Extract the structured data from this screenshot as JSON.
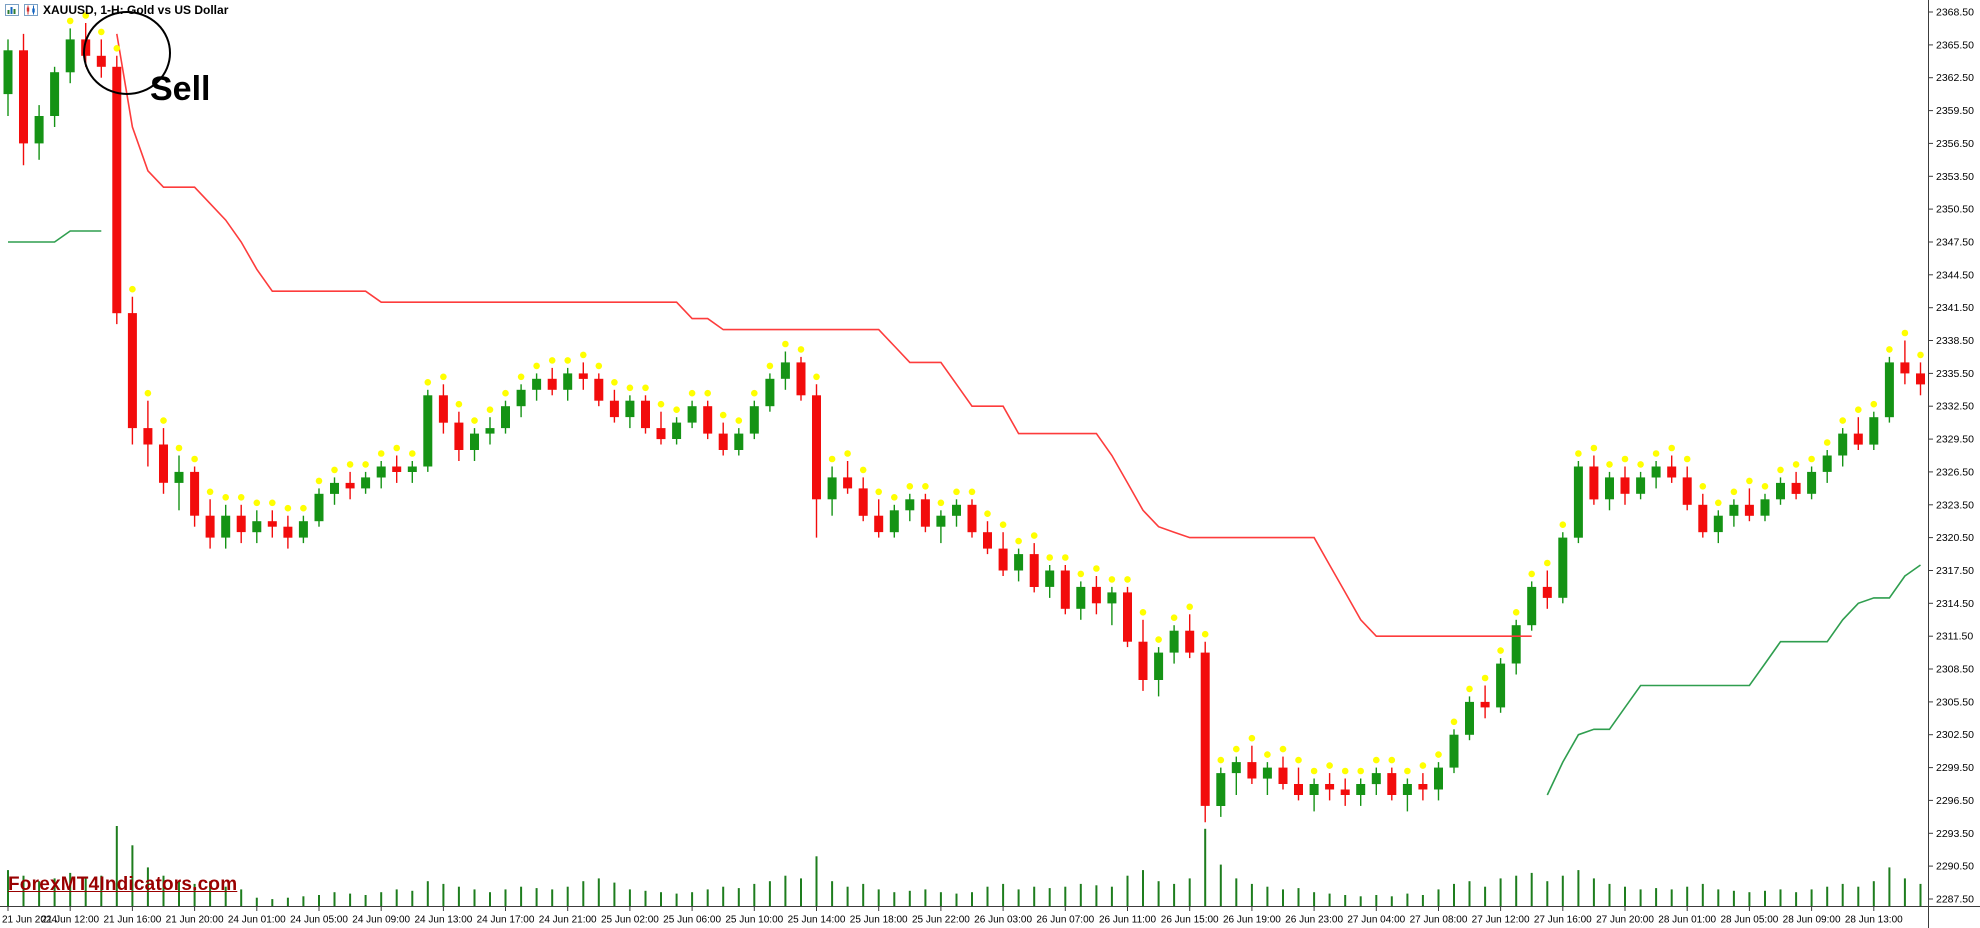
{
  "window": {
    "title": "XAUUSD, 1-H: Gold vs US Dollar"
  },
  "watermark": "ForexMT4Indicators.com",
  "annotation": {
    "label": "Sell"
  },
  "colors": {
    "background": "#ffffff",
    "bull_candle": "#159315",
    "bear_candle": "#f20c0c",
    "upper_stop_line": "#fd3c3c",
    "lower_stop_line": "#2f9e4f",
    "signal_dot": "#ffff00",
    "volume_bar": "#1e7d1e",
    "watermark_text": "#990000",
    "axis_text": "#000000"
  },
  "chart_data": {
    "type": "candlestick",
    "symbol": "XAUUSD",
    "timeframe": "1-H",
    "title": "XAUUSD, 1-H: Gold vs US Dollar",
    "grid": "off",
    "legend": "none",
    "y_axis": {
      "max_label": 2368.5,
      "min_label": 2287.5,
      "tick_step": 3.0,
      "tick_labels": [
        "2368.50",
        "2365.50",
        "2362.50",
        "2359.50",
        "2356.50",
        "2353.50",
        "2350.50",
        "2347.50",
        "2344.50",
        "2341.50",
        "2338.50",
        "2335.50",
        "2332.50",
        "2329.50",
        "2326.50",
        "2323.50",
        "2320.50",
        "2317.50",
        "2314.50",
        "2311.50",
        "2308.50",
        "2305.50",
        "2302.50",
        "2299.50",
        "2296.50",
        "2293.50",
        "2290.50",
        "2287.50"
      ]
    },
    "x_axis": {
      "candles_per_tick": 4,
      "tick_labels": [
        "21 Jun 2024",
        "21 Jun 12:00",
        "21 Jun 16:00",
        "21 Jun 20:00",
        "24 Jun 01:00",
        "24 Jun 05:00",
        "24 Jun 09:00",
        "24 Jun 13:00",
        "24 Jun 17:00",
        "24 Jun 21:00",
        "25 Jun 02:00",
        "25 Jun 06:00",
        "25 Jun 10:00",
        "25 Jun 14:00",
        "25 Jun 18:00",
        "25 Jun 22:00",
        "26 Jun 03:00",
        "26 Jun 07:00",
        "26 Jun 11:00",
        "26 Jun 15:00",
        "26 Jun 19:00",
        "26 Jun 23:00",
        "27 Jun 04:00",
        "27 Jun 08:00",
        "27 Jun 12:00",
        "27 Jun 16:00",
        "27 Jun 20:00",
        "28 Jun 01:00",
        "28 Jun 05:00",
        "28 Jun 09:00",
        "28 Jun 13:00"
      ]
    },
    "candles_ohlc": [
      [
        2361,
        2366,
        2359,
        2365
      ],
      [
        2365,
        2366.5,
        2354.5,
        2356.5
      ],
      [
        2356.5,
        2360,
        2355,
        2359
      ],
      [
        2359,
        2363.5,
        2358,
        2363
      ],
      [
        2363,
        2367,
        2362,
        2366
      ],
      [
        2366,
        2367.5,
        2363.5,
        2364.5
      ],
      [
        2364.5,
        2366,
        2362.5,
        2363.5
      ],
      [
        2363.5,
        2364.5,
        2340,
        2341
      ],
      [
        2341,
        2342.5,
        2329,
        2330.5
      ],
      [
        2330.5,
        2333,
        2327,
        2329
      ],
      [
        2329,
        2330.5,
        2324.5,
        2325.5
      ],
      [
        2325.5,
        2328,
        2323,
        2326.5
      ],
      [
        2326.5,
        2327,
        2321.5,
        2322.5
      ],
      [
        2322.5,
        2324,
        2319.5,
        2320.5
      ],
      [
        2320.5,
        2323.5,
        2319.5,
        2322.5
      ],
      [
        2322.5,
        2323.5,
        2320,
        2321
      ],
      [
        2321,
        2323,
        2320,
        2322
      ],
      [
        2322,
        2323,
        2320.5,
        2321.5
      ],
      [
        2321.5,
        2322.5,
        2319.5,
        2320.5
      ],
      [
        2320.5,
        2322.5,
        2320,
        2322
      ],
      [
        2322,
        2325,
        2321.5,
        2324.5
      ],
      [
        2324.5,
        2326,
        2323.5,
        2325.5
      ],
      [
        2325.5,
        2326.5,
        2324,
        2325
      ],
      [
        2325,
        2326.5,
        2324.5,
        2326
      ],
      [
        2326,
        2327.5,
        2325,
        2327
      ],
      [
        2327,
        2328,
        2325.5,
        2326.5
      ],
      [
        2326.5,
        2327.5,
        2325.5,
        2327
      ],
      [
        2327,
        2334,
        2326.5,
        2333.5
      ],
      [
        2333.5,
        2334.5,
        2330,
        2331
      ],
      [
        2331,
        2332,
        2327.5,
        2328.5
      ],
      [
        2328.5,
        2330.5,
        2327.5,
        2330
      ],
      [
        2330,
        2331.5,
        2329,
        2330.5
      ],
      [
        2330.5,
        2333,
        2330,
        2332.5
      ],
      [
        2332.5,
        2334.5,
        2331.5,
        2334
      ],
      [
        2334,
        2335.5,
        2333,
        2335
      ],
      [
        2335,
        2336,
        2333.5,
        2334
      ],
      [
        2334,
        2336,
        2333,
        2335.5
      ],
      [
        2335.5,
        2336.5,
        2334,
        2335
      ],
      [
        2335,
        2335.5,
        2332.5,
        2333
      ],
      [
        2333,
        2334,
        2331,
        2331.5
      ],
      [
        2331.5,
        2333.5,
        2330.5,
        2333
      ],
      [
        2333,
        2333.5,
        2330,
        2330.5
      ],
      [
        2330.5,
        2332,
        2329,
        2329.5
      ],
      [
        2329.5,
        2331.5,
        2329,
        2331
      ],
      [
        2331,
        2333,
        2330.5,
        2332.5
      ],
      [
        2332.5,
        2333,
        2329.5,
        2330
      ],
      [
        2330,
        2331,
        2328,
        2328.5
      ],
      [
        2328.5,
        2330.5,
        2328,
        2330
      ],
      [
        2330,
        2333,
        2329.5,
        2332.5
      ],
      [
        2332.5,
        2335.5,
        2332,
        2335
      ],
      [
        2335,
        2337.5,
        2334,
        2336.5
      ],
      [
        2336.5,
        2337,
        2333,
        2333.5
      ],
      [
        2333.5,
        2334.5,
        2320.5,
        2324
      ],
      [
        2324,
        2327,
        2322.5,
        2326
      ],
      [
        2326,
        2327.5,
        2324.5,
        2325
      ],
      [
        2325,
        2326,
        2322,
        2322.5
      ],
      [
        2322.5,
        2324,
        2320.5,
        2321
      ],
      [
        2321,
        2323.5,
        2320.5,
        2323
      ],
      [
        2323,
        2324.5,
        2322,
        2324
      ],
      [
        2324,
        2324.5,
        2321,
        2321.5
      ],
      [
        2321.5,
        2323,
        2320,
        2322.5
      ],
      [
        2322.5,
        2324,
        2321.5,
        2323.5
      ],
      [
        2323.5,
        2324,
        2320.5,
        2321
      ],
      [
        2321,
        2322,
        2319,
        2319.5
      ],
      [
        2319.5,
        2321,
        2317,
        2317.5
      ],
      [
        2317.5,
        2319.5,
        2316.5,
        2319
      ],
      [
        2319,
        2320,
        2315.5,
        2316
      ],
      [
        2316,
        2318,
        2315,
        2317.5
      ],
      [
        2317.5,
        2318,
        2313.5,
        2314
      ],
      [
        2314,
        2316.5,
        2313,
        2316
      ],
      [
        2316,
        2317,
        2313.5,
        2314.5
      ],
      [
        2314.5,
        2316,
        2312.5,
        2315.5
      ],
      [
        2315.5,
        2316,
        2310.5,
        2311
      ],
      [
        2311,
        2313,
        2306.5,
        2307.5
      ],
      [
        2307.5,
        2310.5,
        2306,
        2310
      ],
      [
        2310,
        2312.5,
        2309,
        2312
      ],
      [
        2312,
        2313.5,
        2309.5,
        2310
      ],
      [
        2310,
        2311,
        2294.5,
        2296
      ],
      [
        2296,
        2299.5,
        2295,
        2299
      ],
      [
        2299,
        2300.5,
        2297,
        2300
      ],
      [
        2300,
        2301.5,
        2298,
        2298.5
      ],
      [
        2298.5,
        2300,
        2297,
        2299.5
      ],
      [
        2299.5,
        2300.5,
        2297.5,
        2298
      ],
      [
        2298,
        2299.5,
        2296.5,
        2297
      ],
      [
        2297,
        2298.5,
        2295.5,
        2298
      ],
      [
        2298,
        2299,
        2296.5,
        2297.5
      ],
      [
        2297.5,
        2298.5,
        2296,
        2297
      ],
      [
        2297,
        2298.5,
        2296,
        2298
      ],
      [
        2298,
        2299.5,
        2297,
        2299
      ],
      [
        2299,
        2299.5,
        2296.5,
        2297
      ],
      [
        2297,
        2298.5,
        2295.5,
        2298
      ],
      [
        2298,
        2299,
        2296.5,
        2297.5
      ],
      [
        2297.5,
        2300,
        2296.5,
        2299.5
      ],
      [
        2299.5,
        2303,
        2299,
        2302.5
      ],
      [
        2302.5,
        2306,
        2302,
        2305.5
      ],
      [
        2305.5,
        2307,
        2304,
        2305
      ],
      [
        2305,
        2309.5,
        2304.5,
        2309
      ],
      [
        2309,
        2313,
        2308,
        2312.5
      ],
      [
        2312.5,
        2316.5,
        2312,
        2316
      ],
      [
        2316,
        2317.5,
        2314,
        2315
      ],
      [
        2315,
        2321,
        2314.5,
        2320.5
      ],
      [
        2320.5,
        2327.5,
        2320,
        2327
      ],
      [
        2327,
        2328,
        2323.5,
        2324
      ],
      [
        2324,
        2326.5,
        2323,
        2326
      ],
      [
        2326,
        2327,
        2323.5,
        2324.5
      ],
      [
        2324.5,
        2326.5,
        2324,
        2326
      ],
      [
        2326,
        2327.5,
        2325,
        2327
      ],
      [
        2327,
        2328,
        2325.5,
        2326
      ],
      [
        2326,
        2327,
        2323,
        2323.5
      ],
      [
        2323.5,
        2324.5,
        2320.5,
        2321
      ],
      [
        2321,
        2323,
        2320,
        2322.5
      ],
      [
        2322.5,
        2324,
        2321.5,
        2323.5
      ],
      [
        2323.5,
        2325,
        2322,
        2322.5
      ],
      [
        2322.5,
        2324.5,
        2322,
        2324
      ],
      [
        2324,
        2326,
        2323.5,
        2325.5
      ],
      [
        2325.5,
        2326.5,
        2324,
        2324.5
      ],
      [
        2324.5,
        2327,
        2324,
        2326.5
      ],
      [
        2326.5,
        2328.5,
        2325.5,
        2328
      ],
      [
        2328,
        2330.5,
        2327,
        2330
      ],
      [
        2330,
        2331.5,
        2328.5,
        2329
      ],
      [
        2329,
        2332,
        2328.5,
        2331.5
      ],
      [
        2331.5,
        2337,
        2331,
        2336.5
      ],
      [
        2336.5,
        2338.5,
        2334.5,
        2335.5
      ],
      [
        2335.5,
        2336.5,
        2333.5,
        2334.5
      ]
    ],
    "upper_stop_line_segments": [
      {
        "start_index": 7,
        "values": [
          2366.5,
          2358,
          2354,
          2352.5,
          2352.5,
          2352.5,
          2351,
          2349.5,
          2347.5,
          2345,
          2343,
          2343,
          2343,
          2343,
          2343,
          2343,
          2343,
          2342,
          2342,
          2342,
          2342,
          2342,
          2342,
          2342,
          2342,
          2342,
          2342,
          2342,
          2342,
          2342,
          2342,
          2342,
          2342,
          2342,
          2342,
          2342,
          2342,
          2340.5,
          2340.5,
          2339.5,
          2339.5,
          2339.5,
          2339.5,
          2339.5,
          2339.5,
          2339.5,
          2339.5,
          2339.5,
          2339.5,
          2339.5,
          2338,
          2336.5,
          2336.5,
          2336.5,
          2334.5,
          2332.5,
          2332.5,
          2332.5,
          2330,
          2330,
          2330,
          2330,
          2330,
          2330,
          2328,
          2325.5,
          2323,
          2321.5,
          2321,
          2320.5,
          2320.5,
          2320.5,
          2320.5,
          2320.5,
          2320.5,
          2320.5,
          2320.5,
          2320.5,
          2318,
          2315.5,
          2313,
          2311.5,
          2311.5,
          2311.5,
          2311.5,
          2311.5,
          2311.5,
          2311.5,
          2311.5,
          2311.5,
          2311.5,
          2311.5
        ]
      }
    ],
    "lower_stop_line_segments": [
      {
        "start_index": 0,
        "values": [
          2347.5,
          2347.5,
          2347.5,
          2347.5,
          2348.5,
          2348.5,
          2348.5
        ]
      },
      {
        "start_index": 99,
        "values": [
          2297,
          2300,
          2302.5,
          2303,
          2303,
          2305,
          2307,
          2307,
          2307,
          2307,
          2307,
          2307,
          2307,
          2307,
          2309,
          2311,
          2311,
          2311,
          2311,
          2313,
          2314.5,
          2315,
          2315,
          2317,
          2318
        ]
      }
    ],
    "signal_dots": {
      "shape": "dot-above-high",
      "from_index": 4
    },
    "volume": [
      1300,
      1100,
      900,
      1000,
      1200,
      1000,
      1100,
      2900,
      2200,
      1400,
      1100,
      900,
      800,
      900,
      700,
      600,
      300,
      250,
      300,
      350,
      400,
      500,
      450,
      400,
      500,
      600,
      550,
      900,
      800,
      700,
      600,
      500,
      600,
      700,
      650,
      600,
      700,
      900,
      1000,
      850,
      600,
      550,
      500,
      450,
      500,
      600,
      700,
      650,
      800,
      900,
      1100,
      1000,
      1800,
      900,
      700,
      800,
      600,
      500,
      550,
      600,
      500,
      450,
      500,
      700,
      800,
      600,
      700,
      650,
      700,
      800,
      750,
      700,
      1100,
      1300,
      900,
      800,
      1000,
      2800,
      1500,
      1000,
      800,
      700,
      600,
      650,
      500,
      450,
      400,
      350,
      400,
      350,
      450,
      400,
      600,
      800,
      900,
      700,
      1000,
      1100,
      1200,
      900,
      1100,
      1300,
      1000,
      800,
      700,
      600,
      650,
      600,
      700,
      800,
      600,
      550,
      500,
      550,
      600,
      500,
      600,
      700,
      800,
      700,
      900,
      1400,
      1000,
      800
    ]
  }
}
